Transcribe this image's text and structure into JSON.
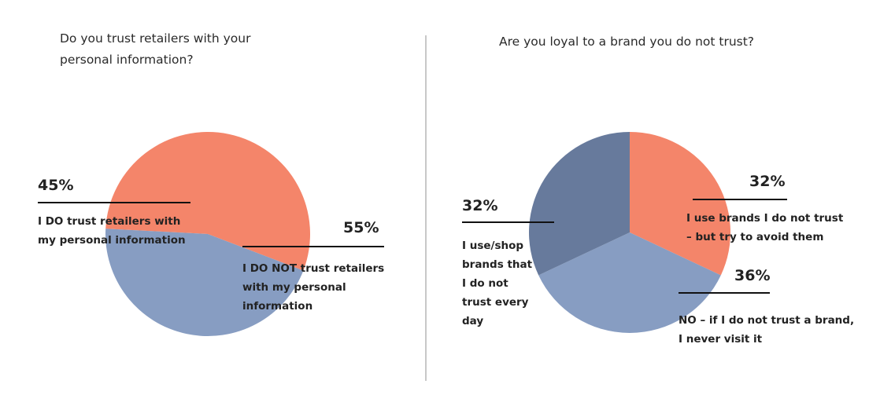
{
  "colors": {
    "orange": "#F4856A",
    "blue": "#879DC2",
    "slate": "#677A9C"
  },
  "chart_data": [
    {
      "type": "pie",
      "title": "Do you trust retailers with your personal information?",
      "title_lines": [
        "Do you trust retailers with your",
        "personal information?"
      ],
      "slices": [
        {
          "label": "I DO NOT trust retailers with my personal information",
          "value": 55,
          "display": "55%",
          "color": "#F4856A"
        },
        {
          "label": "I DO trust retailers with my personal information",
          "value": 45,
          "display": "45%",
          "color": "#879DC2"
        }
      ],
      "label_lines": [
        [
          "I DO NOT trust retailers",
          "with my personal",
          "information"
        ],
        [
          "I DO trust retailers with",
          "my personal information"
        ]
      ]
    },
    {
      "type": "pie",
      "title": "Are you loyal to a brand you do not trust?",
      "slices": [
        {
          "label": "I use brands I do not trust – but try to avoid them",
          "value": 32,
          "display": "32%",
          "color": "#F4856A"
        },
        {
          "label": "NO – if I do not trust a brand, I never visit it",
          "value": 36,
          "display": "36%",
          "color": "#879DC2"
        },
        {
          "label": "I use/shop brands that I do not trust every day",
          "value": 32,
          "display": "32%",
          "color": "#677A9C"
        }
      ],
      "label_lines": [
        [
          "I use brands I do not trust",
          "– but try to avoid them"
        ],
        [
          "NO – if I do not trust a brand,",
          "I never visit it"
        ],
        [
          "I use/shop",
          "brands that",
          "I do not",
          "trust every",
          "day"
        ]
      ]
    }
  ]
}
